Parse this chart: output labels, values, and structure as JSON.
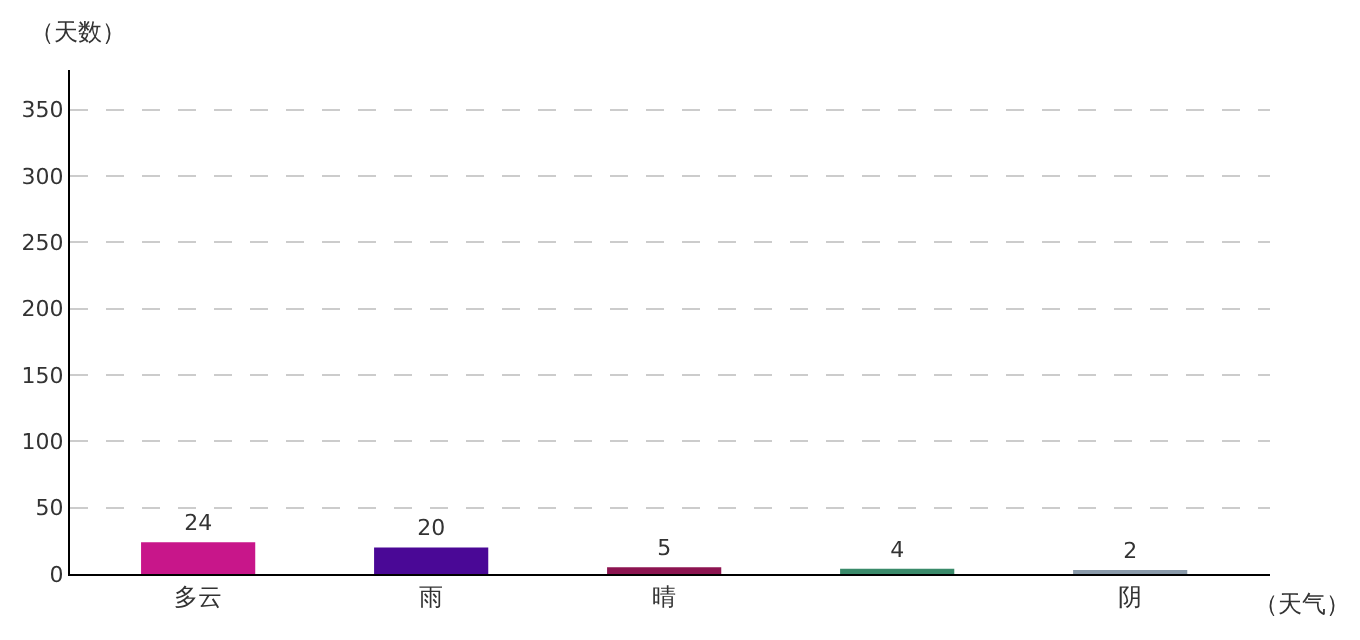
{
  "chart_data": {
    "type": "bar",
    "categories": [
      "多云",
      "雨",
      "晴",
      null,
      "阴"
    ],
    "values": [
      24,
      20,
      5,
      4,
      2
    ],
    "colors": [
      "#c8168a",
      "#4a0896",
      "#8c1450",
      "#3a8a6a",
      "#8a9aaa"
    ],
    "ylim": [
      0,
      380
    ],
    "yticks": [
      0,
      50,
      100,
      150,
      200,
      250,
      300,
      350
    ],
    "grid": "y",
    "data_labels": true,
    "xlabel": "（天气）",
    "ylabel": "（天数）"
  }
}
